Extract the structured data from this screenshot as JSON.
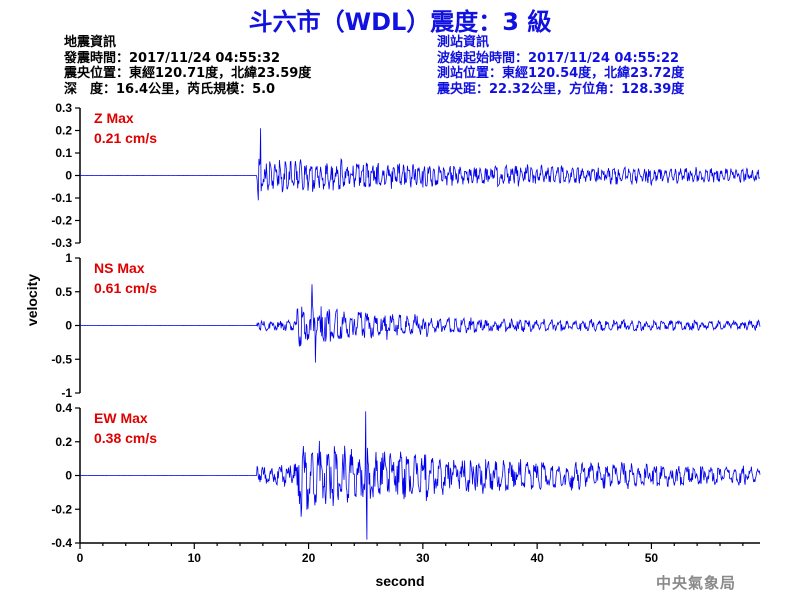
{
  "header": {
    "title": "斗六市（WDL）震度：3 級"
  },
  "earthquake_info": {
    "heading": "地震資訊",
    "origin_time": "發震時間：2017/11/24 04:55:32",
    "epicenter": "震央位置：東經120.71度，北緯23.59度",
    "depth_magnitude": "深　度：16.4公里，芮氏規模：5.0"
  },
  "station_info": {
    "heading": "測站資訊",
    "wave_start": "波線起始時間：2017/11/24 04:55:22",
    "station_location": "測站位置：東經120.54度，北緯23.72度",
    "distance": "震央距：22.32公里，方位角：128.39度"
  },
  "footer": {
    "agency": "中央氣象局"
  },
  "colors": {
    "title": "#1010e0",
    "trace": "#0000ee",
    "label": "#e00000",
    "footer": "#8a8a8a"
  },
  "chart_data": {
    "type": "line",
    "xlabel": "second",
    "ylabel": "velocity",
    "xlim": [
      0,
      59.5
    ],
    "xticks": [
      0,
      10,
      20,
      30,
      40,
      50
    ],
    "grid": false,
    "panels": [
      {
        "name": "Z",
        "label_line1": "Z Max",
        "label_line2": "0.21 cm/s",
        "ylim": [
          -0.3,
          0.3
        ],
        "yticks": [
          0.3,
          0.2,
          0.1,
          0,
          -0.1,
          -0.2,
          -0.3
        ],
        "ytick_labels": [
          "0.3",
          "0.2",
          "0.1",
          "0",
          "-0.1",
          "-0.2",
          "-0.3"
        ],
        "max": 0.21,
        "onset": 15.5,
        "peak_time": 15.8,
        "min": -0.11,
        "min_time": 15.6
      },
      {
        "name": "NS",
        "label_line1": "NS Max",
        "label_line2": "0.61 cm/s",
        "ylim": [
          -1,
          1
        ],
        "yticks": [
          1,
          0.5,
          0,
          -0.5,
          -1
        ],
        "ytick_labels": [
          "1",
          "0.5",
          "0",
          "-0.5",
          "-1"
        ],
        "max": 0.61,
        "onset": 15.5,
        "peak_time": 20.3,
        "min": -0.55,
        "min_time": 20.6
      },
      {
        "name": "EW",
        "label_line1": "EW Max",
        "label_line2": "0.38 cm/s",
        "ylim": [
          -0.4,
          0.4
        ],
        "yticks": [
          0.4,
          0.2,
          0,
          -0.2,
          -0.4
        ],
        "ytick_labels": [
          "0.4",
          "0.2",
          "0",
          "-0.2",
          "-0.4"
        ],
        "max": 0.38,
        "onset": 15.5,
        "peak_time": 25.0,
        "min": -0.38,
        "min_time": 25.1
      }
    ]
  }
}
